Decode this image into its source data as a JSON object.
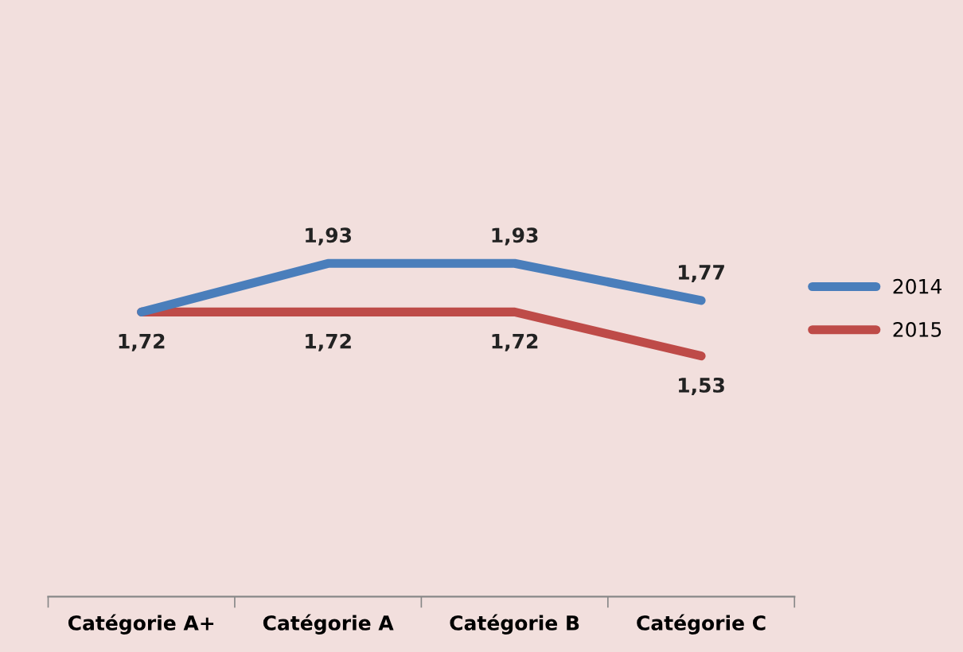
{
  "chart_data": {
    "type": "line",
    "categories": [
      "Catégorie A+",
      "Catégorie A",
      "Catégorie B",
      "Catégorie C"
    ],
    "series": [
      {
        "name": "2014",
        "color": "#4a7ebb",
        "values": [
          1.72,
          1.93,
          1.93,
          1.77
        ],
        "value_labels": [
          null,
          "1,93",
          "1,93",
          "1,77"
        ]
      },
      {
        "name": "2015",
        "color": "#be4b48",
        "values": [
          1.72,
          1.72,
          1.72,
          1.53
        ],
        "value_labels": [
          "1,72",
          "1,72",
          "1,72",
          "1,53"
        ]
      }
    ],
    "tick_labels": "x",
    "legend": "right",
    "marker": "none",
    "line_style": "solid",
    "grid": false
  }
}
